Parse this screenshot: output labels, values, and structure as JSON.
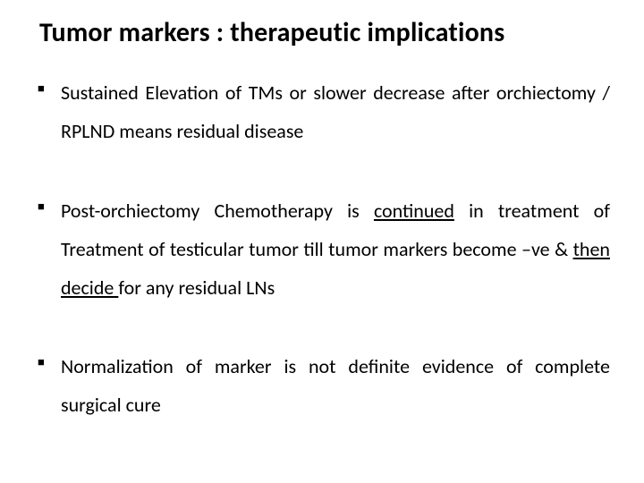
{
  "slide": {
    "title": "Tumor markers : therapeutic implications",
    "title_fontsize": 30,
    "title_fontweight": 700,
    "body_fontsize": 22,
    "line_height": 1.95,
    "bullet_glyph": "■",
    "text_color": "#000000",
    "background_color": "#ffffff",
    "bullets": [
      {
        "segments": [
          {
            "text": "Sustained Elevation of  TMs or slower decrease after orchiectomy / RPLND means residual disease",
            "underline": false
          }
        ]
      },
      {
        "segments": [
          {
            "text": "Post-orchiectomy Chemotherapy is ",
            "underline": false
          },
          {
            "text": "continued",
            "underline": true
          },
          {
            "text": " in treatment of Treatment of testicular tumor till tumor markers become –ve  & ",
            "underline": false
          },
          {
            "text": "then decide ",
            "underline": true
          },
          {
            "text": " for any residual  LNs",
            "underline": false
          }
        ]
      },
      {
        "segments": [
          {
            "text": "Normalization of marker is not definite evidence of complete surgical cure",
            "underline": false
          }
        ]
      }
    ]
  }
}
